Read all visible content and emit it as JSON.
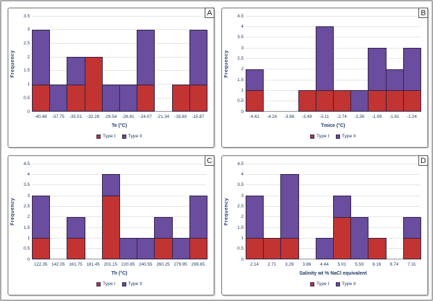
{
  "figure": {
    "description": "Four stacked frequency histograms of fluid inclusion data",
    "panel_letters": [
      "A",
      "B",
      "C",
      "D"
    ]
  },
  "colors": {
    "type1_fill": "#c23432",
    "type2_fill": "#6a4d9e",
    "bar_border": "#2e2247",
    "axis_text": "#1f3864",
    "gridline": "#e4e4e4",
    "axis_line": "#8c8c8c",
    "panel_border": "#6e6e6e",
    "outer_frame": "#a8a8a8"
  },
  "legend": {
    "items": [
      {
        "label": "Type I",
        "color": "#c23432"
      },
      {
        "label": "Type II",
        "color": "#6a4d9e"
      }
    ]
  },
  "chart_data": [
    {
      "panel_label": "A",
      "type": "bar",
      "stacked": true,
      "grid": true,
      "legend_position": "bottom",
      "ylabel": "Frequency",
      "xlabel": "Te (°C)",
      "ylim": [
        0,
        3.5
      ],
      "ytick_step": 0.5,
      "categories": [
        "-40.48",
        "-37.75",
        "-35.01",
        "-32.28",
        "-29.54",
        "-26.81",
        "-24.07",
        "-21.34",
        "-18.60",
        "-15.87"
      ],
      "series": [
        {
          "name": "Type I",
          "values": [
            1,
            0,
            1,
            2,
            0,
            0,
            1,
            0,
            1,
            1
          ]
        },
        {
          "name": "Type II",
          "values": [
            2,
            1,
            1,
            0,
            1,
            1,
            2,
            0,
            0,
            2
          ]
        }
      ]
    },
    {
      "panel_label": "B",
      "type": "bar",
      "stacked": true,
      "grid": true,
      "legend_position": "bottom",
      "ylabel": "Frequency",
      "xlabel": "Tmice (°C)",
      "ylim": [
        0,
        4.5
      ],
      "ytick_step": 0.5,
      "categories": [
        "-4.61",
        "-4.24",
        "-3.86",
        "-3.49",
        "-3.11",
        "-2.74",
        "-2.36",
        "-1.99",
        "-1.61",
        "-1.24"
      ],
      "series": [
        {
          "name": "Type I",
          "values": [
            1,
            0,
            0,
            1,
            1,
            1,
            0,
            1,
            1,
            1
          ]
        },
        {
          "name": "Type II",
          "values": [
            1,
            0,
            0,
            0,
            3,
            0,
            1,
            2,
            1,
            2
          ]
        }
      ]
    },
    {
      "panel_label": "C",
      "type": "bar",
      "stacked": true,
      "grid": true,
      "legend_position": "bottom",
      "ylabel": "Frequency",
      "xlabel": "Th (°C)",
      "ylim": [
        0,
        4.5
      ],
      "ytick_step": 0.5,
      "categories": [
        "122.35",
        "142.05",
        "161.75",
        "181.45",
        "201.15",
        "220.85",
        "240.55",
        "260.25",
        "279.95",
        "299.65"
      ],
      "series": [
        {
          "name": "Type I",
          "values": [
            1,
            0,
            1,
            0,
            3,
            0,
            0,
            1,
            0,
            1
          ]
        },
        {
          "name": "Type II",
          "values": [
            2,
            0,
            1,
            0,
            1,
            1,
            1,
            1,
            1,
            2
          ]
        }
      ]
    },
    {
      "panel_label": "D",
      "type": "bar",
      "stacked": true,
      "grid": true,
      "legend_position": "bottom",
      "ylabel": "Frequency",
      "xlabel": "Salinity wt % NaCl equivalent",
      "ylim": [
        0,
        4.5
      ],
      "ytick_step": 0.5,
      "categories": [
        "2.14",
        "2.71",
        "3.29",
        "3.86",
        "4.44",
        "5.01",
        "5.59",
        "6.16",
        "6.74",
        "7.31"
      ],
      "series": [
        {
          "name": "Type I",
          "values": [
            1,
            1,
            1,
            0,
            0,
            2,
            0,
            1,
            0,
            1
          ]
        },
        {
          "name": "Type II",
          "values": [
            2,
            0,
            3,
            0,
            1,
            1,
            2,
            0,
            0,
            1
          ]
        }
      ]
    }
  ]
}
